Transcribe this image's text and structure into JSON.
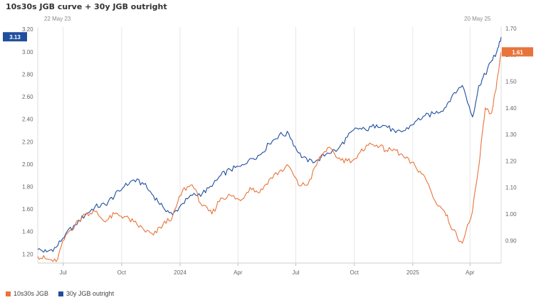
{
  "colors": {
    "series1": "#e8743b",
    "series2": "#1f4e9e",
    "grid": "#e6e6e6",
    "axis": "#666666"
  },
  "chart_data": {
    "type": "line",
    "title": "10s30s JGB curve + 30y JGB outright",
    "start_date_label": "22 May 23",
    "end_date_label": "20 May 25",
    "x_range": [
      "2023-05-22",
      "2025-05-20"
    ],
    "x_ticks": [
      {
        "date": "2023-07-01",
        "label": "Jul"
      },
      {
        "date": "2023-10-01",
        "label": "Oct"
      },
      {
        "date": "2024-01-01",
        "label": "2024"
      },
      {
        "date": "2024-04-01",
        "label": "Apr"
      },
      {
        "date": "2024-07-01",
        "label": "Jul"
      },
      {
        "date": "2024-10-01",
        "label": "Oct"
      },
      {
        "date": "2025-01-01",
        "label": "2025"
      },
      {
        "date": "2025-04-01",
        "label": "Apr"
      }
    ],
    "left_axis": {
      "range": [
        1.12,
        3.22
      ],
      "ticks": [
        "3.20",
        "3.00",
        "2.80",
        "2.60",
        "2.40",
        "2.20",
        "2.00",
        "1.80",
        "1.60",
        "1.40",
        "1.20"
      ]
    },
    "right_axis": {
      "range": [
        0.815,
        1.705
      ],
      "ticks": [
        "1.70",
        "1.60",
        "1.50",
        "1.40",
        "1.30",
        "1.20",
        "1.10",
        "1.00",
        "0.90"
      ]
    },
    "grid": true,
    "legend_position": "bottom-left",
    "series": [
      {
        "name": "10s30s JGB",
        "axis": "right",
        "last_value_label": "1.61",
        "x": [
          "2023-05-22",
          "2023-06-05",
          "2023-06-20",
          "2023-07-05",
          "2023-07-20",
          "2023-08-05",
          "2023-08-20",
          "2023-09-05",
          "2023-09-20",
          "2023-10-05",
          "2023-10-20",
          "2023-11-05",
          "2023-11-20",
          "2023-12-05",
          "2023-12-20",
          "2024-01-05",
          "2024-01-20",
          "2024-02-05",
          "2024-02-20",
          "2024-03-05",
          "2024-03-20",
          "2024-04-05",
          "2024-04-20",
          "2024-05-05",
          "2024-05-20",
          "2024-06-05",
          "2024-06-20",
          "2024-07-05",
          "2024-07-20",
          "2024-08-05",
          "2024-08-20",
          "2024-09-05",
          "2024-09-20",
          "2024-10-05",
          "2024-10-20",
          "2024-11-05",
          "2024-11-20",
          "2024-12-05",
          "2024-12-20",
          "2025-01-05",
          "2025-01-20",
          "2025-02-05",
          "2025-02-20",
          "2025-03-05",
          "2025-03-20",
          "2025-04-05",
          "2025-04-15",
          "2025-04-25",
          "2025-05-05",
          "2025-05-12",
          "2025-05-20"
        ],
        "values": [
          0.84,
          0.83,
          0.82,
          0.92,
          0.96,
          1.0,
          1.01,
          0.97,
          1.0,
          0.99,
          0.97,
          0.94,
          0.92,
          0.96,
          0.99,
          1.09,
          1.11,
          1.03,
          1.0,
          1.06,
          1.07,
          1.05,
          1.1,
          1.08,
          1.13,
          1.16,
          1.18,
          1.11,
          1.11,
          1.2,
          1.25,
          1.21,
          1.2,
          1.21,
          1.26,
          1.26,
          1.24,
          1.24,
          1.21,
          1.18,
          1.14,
          1.05,
          1.01,
          0.94,
          0.89,
          1.01,
          1.18,
          1.4,
          1.38,
          1.47,
          1.61
        ]
      },
      {
        "name": "30y JGB outright",
        "axis": "left",
        "last_value_label": "3.13",
        "x": [
          "2023-05-22",
          "2023-06-05",
          "2023-06-20",
          "2023-07-05",
          "2023-07-20",
          "2023-08-05",
          "2023-08-20",
          "2023-09-05",
          "2023-09-20",
          "2023-10-05",
          "2023-10-20",
          "2023-11-05",
          "2023-11-20",
          "2023-12-05",
          "2023-12-20",
          "2024-01-05",
          "2024-01-20",
          "2024-02-05",
          "2024-02-20",
          "2024-03-05",
          "2024-03-20",
          "2024-04-05",
          "2024-04-20",
          "2024-05-05",
          "2024-05-20",
          "2024-06-05",
          "2024-06-20",
          "2024-07-05",
          "2024-07-20",
          "2024-08-05",
          "2024-08-20",
          "2024-09-05",
          "2024-09-20",
          "2024-10-05",
          "2024-10-20",
          "2024-11-05",
          "2024-11-20",
          "2024-12-05",
          "2024-12-20",
          "2025-01-05",
          "2025-01-20",
          "2025-02-05",
          "2025-02-20",
          "2025-03-05",
          "2025-03-20",
          "2025-04-05",
          "2025-04-15",
          "2025-04-25",
          "2025-05-05",
          "2025-05-12",
          "2025-05-20"
        ],
        "values": [
          1.24,
          1.22,
          1.26,
          1.38,
          1.46,
          1.55,
          1.62,
          1.64,
          1.72,
          1.8,
          1.86,
          1.82,
          1.72,
          1.62,
          1.55,
          1.65,
          1.72,
          1.74,
          1.8,
          1.9,
          1.95,
          1.98,
          2.05,
          2.08,
          2.18,
          2.26,
          2.27,
          2.1,
          2.02,
          2.04,
          2.1,
          2.13,
          2.24,
          2.32,
          2.3,
          2.35,
          2.34,
          2.28,
          2.3,
          2.38,
          2.43,
          2.45,
          2.5,
          2.62,
          2.7,
          2.42,
          2.7,
          2.8,
          2.92,
          2.98,
          3.13
        ]
      }
    ]
  }
}
